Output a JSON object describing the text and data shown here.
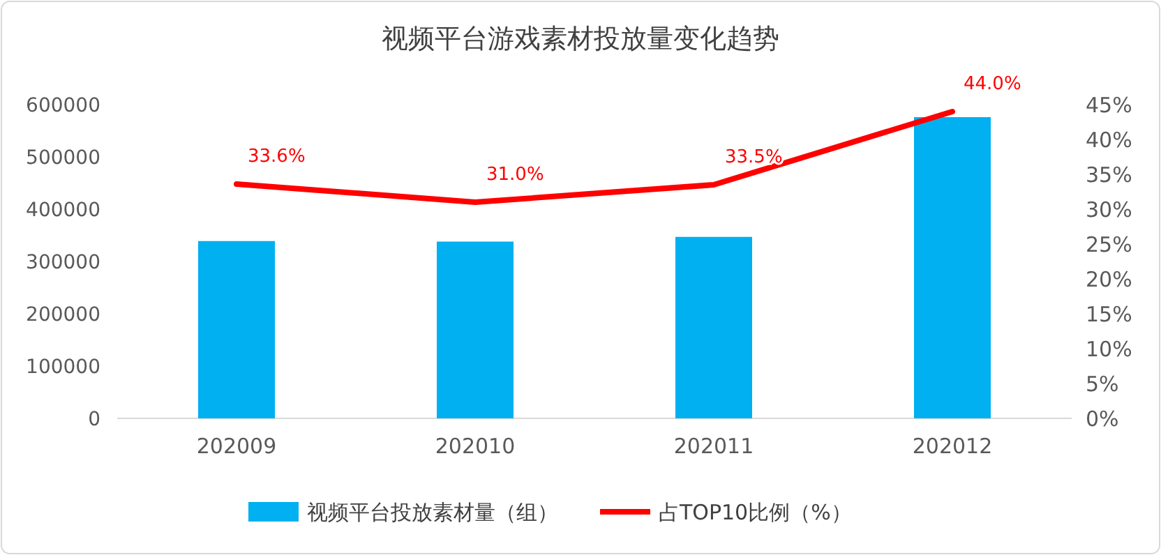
{
  "chart_data": {
    "type": "bar",
    "title": "视频平台游戏素材投放量变化趋势",
    "categories": [
      "202009",
      "202010",
      "202011",
      "202012"
    ],
    "series": [
      {
        "name": "视频平台投放素材量（组）",
        "color": "#00b0f0",
        "values": [
          339000,
          338000,
          347000,
          576000
        ]
      },
      {
        "name": "占TOP10比例（%）",
        "color": "#ff0000",
        "type": "line",
        "axis": "y2",
        "values": [
          33.6,
          31.0,
          33.5,
          44.0
        ],
        "value_labels": [
          "33.6%",
          "31.0%",
          "33.5%",
          "44.0%"
        ]
      }
    ],
    "ylim": [
      0,
      600000
    ],
    "yticks": [
      0,
      100000,
      200000,
      300000,
      400000,
      500000,
      600000
    ],
    "y2lim": [
      0,
      45
    ],
    "y2ticks": [
      {
        "value": 0,
        "label": "0%"
      },
      {
        "value": 5,
        "label": "5%"
      },
      {
        "value": 10,
        "label": "10%"
      },
      {
        "value": 15,
        "label": "15%"
      },
      {
        "value": 20,
        "label": "20%"
      },
      {
        "value": 25,
        "label": "25%"
      },
      {
        "value": 30,
        "label": "30%"
      },
      {
        "value": 35,
        "label": "35%"
      },
      {
        "value": 40,
        "label": "40%"
      },
      {
        "value": 45,
        "label": "45%"
      }
    ],
    "legend": "bottom",
    "marker": "none"
  }
}
